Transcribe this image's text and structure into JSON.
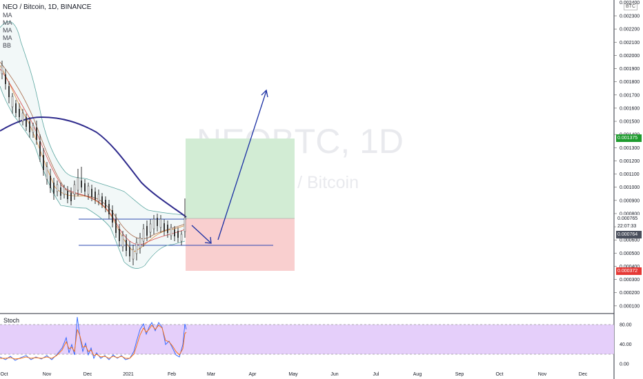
{
  "header": {
    "symbol_title": "NEO / Bitcoin, 1D, BINANCE",
    "indicators": [
      "MA",
      "MA",
      "MA",
      "MA",
      "BB"
    ]
  },
  "watermark": {
    "line1": "NEOBTC, 1D",
    "line2": "NEO / Bitcoin"
  },
  "price_axis": {
    "unit_label": "BTC",
    "ticks": [
      "0.002300",
      "0.002200",
      "0.002100",
      "0.002000",
      "0.001900",
      "0.001800",
      "0.001700",
      "0.001600",
      "0.001500",
      "0.001400",
      "0.001300",
      "0.001200",
      "0.001100",
      "0.001000",
      "0.000900",
      "0.000800",
      "0.000700",
      "0.000600",
      "0.000500",
      "0.000400",
      "0.000300",
      "0.000200",
      "0.000100"
    ],
    "top_partial": "0.002400",
    "badges": {
      "target": "0.001375",
      "entry": "0.000765",
      "countdown": "22:07:33",
      "last": "0.000764",
      "stop": "0.000372"
    }
  },
  "stoch": {
    "label": "Stoch",
    "ticks": [
      "80.00",
      "40.00",
      "0.00"
    ]
  },
  "time_axis": {
    "labels": [
      "Oct",
      "Nov",
      "Dec",
      "2021",
      "Feb",
      "Mar",
      "Apr",
      "May",
      "Jun",
      "Jul",
      "Aug",
      "Sep",
      "Oct",
      "Nov",
      "Dec"
    ]
  },
  "colors": {
    "target_zone": "#d2ecd4",
    "stop_zone": "#f9cfcf",
    "arrow": "#1a2fa3",
    "ma200": "#2e2a8c",
    "bb": "#5aa6a0",
    "stoch_band": "#e5cffa"
  },
  "chart_data": {
    "type": "candlestick",
    "symbol": "NEOBTC",
    "interval": "1D",
    "exchange": "BINANCE",
    "position_levels": {
      "target": 0.001375,
      "entry": 0.000765,
      "stop": 0.000372
    },
    "horizontal_lines": [
      0.000765,
      0.000575
    ],
    "ylim": [
      0,
      0.0024
    ],
    "stoch_ylim": [
      0,
      100
    ],
    "stoch_bands": [
      80,
      20
    ]
  }
}
